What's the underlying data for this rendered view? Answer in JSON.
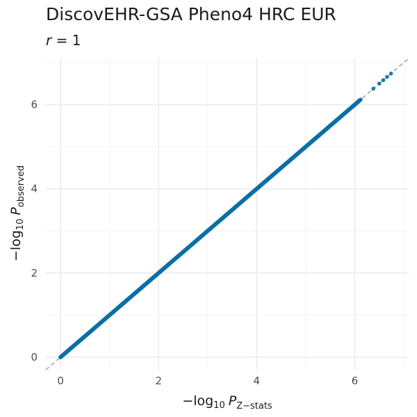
{
  "chart_data": {
    "type": "scatter",
    "title": "DiscovEHR-GSA Pheno4 HRC EUR",
    "subtitle": {
      "var": "r",
      "eq": " = ",
      "value": "1"
    },
    "xlabel": {
      "prefix": "−log",
      "sub1": "10",
      "var": "P",
      "sub2": "Z−stats"
    },
    "ylabel": {
      "prefix": "−log",
      "sub1": "10",
      "var": "P",
      "sub2": "observed"
    },
    "xlim": [
      -0.3,
      7.1
    ],
    "ylim": [
      -0.3,
      7.1
    ],
    "x_ticks": [
      "0",
      "2",
      "4",
      "6"
    ],
    "y_ticks": [
      "0",
      "2",
      "4",
      "6"
    ],
    "grid": true,
    "reference_line": {
      "slope": 1,
      "intercept": 0,
      "style": "dashed",
      "color": "#a6a6a6"
    },
    "point_color": "#0a6fa5",
    "dense_range": [
      0,
      6.1
    ],
    "sparse_points": [
      {
        "x": 6.12,
        "y": 6.12
      },
      {
        "x": 6.38,
        "y": 6.38
      },
      {
        "x": 6.5,
        "y": 6.5
      },
      {
        "x": 6.58,
        "y": 6.58
      },
      {
        "x": 6.66,
        "y": 6.66
      },
      {
        "x": 6.74,
        "y": 6.74
      }
    ]
  }
}
